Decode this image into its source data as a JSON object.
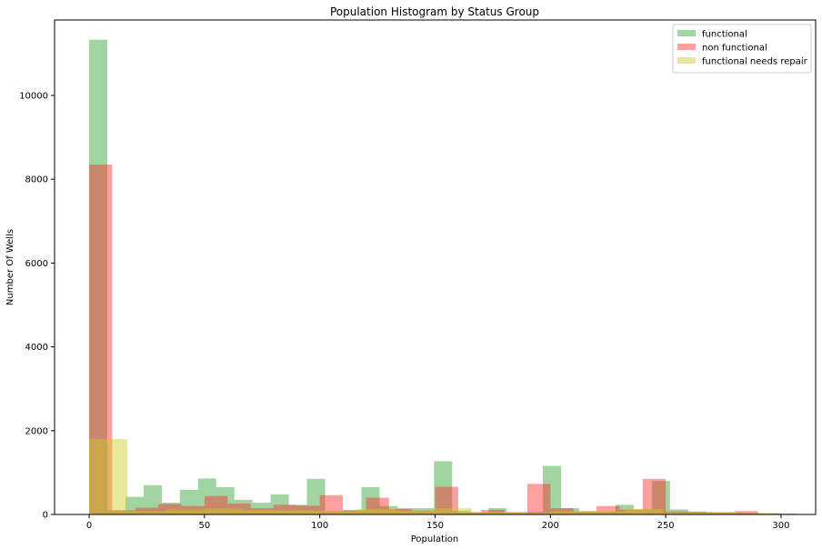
{
  "chart_data": {
    "type": "bar",
    "title": "Population Histogram by Status Group",
    "xlabel": "Population",
    "ylabel": "Number Of Wells",
    "xlim": [
      -15,
      315
    ],
    "ylim": [
      0,
      11800
    ],
    "xticks": [
      0,
      50,
      100,
      150,
      200,
      250,
      300
    ],
    "yticks": [
      0,
      2000,
      4000,
      6000,
      8000,
      10000
    ],
    "grid": false,
    "legend_position": "top-right",
    "series": [
      {
        "name": "functional",
        "color": "#2ca02c",
        "opacity": 0.45,
        "bin_start": 0,
        "bin_width": 7.87,
        "values": [
          11330,
          100,
          420,
          700,
          280,
          590,
          860,
          650,
          350,
          280,
          480,
          230,
          850,
          80,
          110,
          650,
          200,
          150,
          150,
          1270,
          90,
          50,
          150,
          60,
          60,
          1160,
          150,
          80,
          70,
          230,
          120,
          800,
          120,
          70,
          50,
          50,
          40,
          30,
          20
        ]
      },
      {
        "name": "non functional",
        "color": "#ff2a2a",
        "opacity": 0.45,
        "bin_start": 0,
        "bin_width": 10,
        "values": [
          8350,
          100,
          160,
          250,
          200,
          440,
          260,
          150,
          230,
          210,
          460,
          90,
          400,
          130,
          90,
          660,
          50,
          110,
          40,
          730,
          150,
          70,
          200,
          120,
          850,
          70,
          60,
          50,
          80,
          20
        ]
      },
      {
        "name": "functional needs repair",
        "color": "#cccc22",
        "opacity": 0.45,
        "bin_start": 0,
        "bin_width": 16.6,
        "values": [
          1800,
          80,
          120,
          140,
          110,
          100,
          80,
          130,
          90,
          150,
          60,
          40,
          70,
          80,
          130,
          50,
          50,
          30
        ]
      }
    ]
  }
}
